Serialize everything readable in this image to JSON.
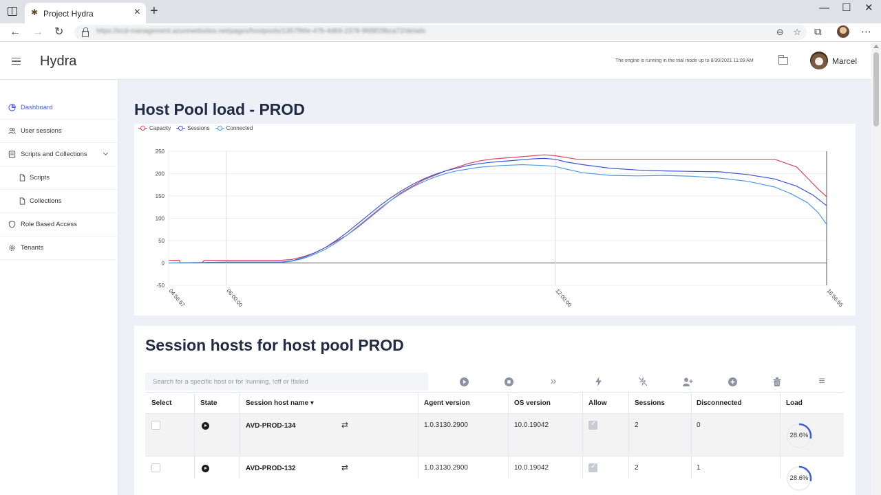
{
  "browser": {
    "tab_title": "Project Hydra",
    "favicon": "hydra-icon",
    "url": "https://ecd-management.azurewebsites.net/pages/hostpools/1357f96e-47b-4d69-2378-9fd9f29bca72/details",
    "nav": {
      "back": "←",
      "forward": "→",
      "reload": "↻"
    },
    "window": {
      "minimize": "—",
      "maximize": "☐",
      "close": "✕"
    }
  },
  "header": {
    "brand": "Hydra",
    "trial_notice": "The engine is running in the trial mode up to 8/30/2021 11:09 AM",
    "user_name": "Marcel"
  },
  "sidebar": {
    "items": [
      {
        "label": "Dashboard",
        "icon": "pie-chart-icon"
      },
      {
        "label": "User sessions",
        "icon": "users-icon"
      },
      {
        "label": "Scripts and Collections",
        "icon": "document-icon"
      },
      {
        "label": "Scripts",
        "icon": "file-icon"
      },
      {
        "label": "Collections",
        "icon": "file-icon"
      },
      {
        "label": "Role Based Access",
        "icon": "shield-icon"
      },
      {
        "label": "Tenants",
        "icon": "gear-icon"
      }
    ]
  },
  "page": {
    "title": "Host Pool load - PROD"
  },
  "chart_data": {
    "type": "line",
    "title": "Host Pool load - PROD",
    "x_ticks": [
      "04:56:57",
      "06:00:00",
      "12:00:00",
      "16:56:55"
    ],
    "x_tick_positions_hours": [
      4.949,
      6.0,
      12.0,
      16.949
    ],
    "xlim_hours": [
      4.949,
      16.949
    ],
    "ylim": [
      -50,
      250
    ],
    "y_ticks": [
      -50,
      0,
      50,
      100,
      150,
      200,
      250
    ],
    "legend": [
      "Capacity",
      "Sessions",
      "Connected"
    ],
    "colors": {
      "Capacity": "#d9445e",
      "Sessions": "#3a52d8",
      "Connected": "#4f9be8"
    },
    "series": [
      {
        "name": "Capacity",
        "x_hours": [
          4.95,
          5.15,
          5.16,
          5.55,
          5.6,
          6.0,
          7.0,
          7.2,
          7.4,
          7.6,
          7.8,
          8.0,
          8.2,
          8.4,
          8.6,
          8.8,
          9.0,
          9.2,
          9.4,
          9.6,
          9.8,
          10.0,
          10.2,
          10.4,
          10.6,
          10.8,
          11.0,
          11.2,
          11.4,
          11.6,
          11.8,
          12.0,
          12.4,
          16.0,
          16.4,
          16.6,
          16.8,
          16.95
        ],
        "values": [
          6,
          6,
          0,
          0,
          6,
          6,
          6,
          8,
          14,
          22,
          34,
          48,
          62,
          80,
          100,
          120,
          140,
          158,
          172,
          186,
          196,
          206,
          214,
          222,
          228,
          232,
          234,
          236,
          238,
          240,
          242,
          240,
          232,
          232,
          215,
          190,
          165,
          148
        ]
      },
      {
        "name": "Sessions",
        "x_hours": [
          4.95,
          6.0,
          7.0,
          7.2,
          7.4,
          7.6,
          7.8,
          8.0,
          8.2,
          8.4,
          8.6,
          8.8,
          9.0,
          9.2,
          9.4,
          9.6,
          9.8,
          10.0,
          10.2,
          10.4,
          10.6,
          10.8,
          11.0,
          11.2,
          11.4,
          11.6,
          11.8,
          12.0,
          12.2,
          12.5,
          13.0,
          13.5,
          14.0,
          14.5,
          15.0,
          15.5,
          16.0,
          16.4,
          16.7,
          16.95
        ],
        "values": [
          0,
          2,
          2,
          5,
          12,
          22,
          34,
          50,
          68,
          88,
          108,
          128,
          146,
          162,
          176,
          188,
          198,
          206,
          212,
          218,
          222,
          225,
          227,
          229,
          231,
          233,
          234,
          232,
          226,
          220,
          212,
          208,
          206,
          205,
          204,
          198,
          188,
          172,
          152,
          128
        ]
      },
      {
        "name": "Connected",
        "x_hours": [
          4.95,
          6.0,
          7.0,
          7.2,
          7.4,
          7.6,
          7.8,
          8.0,
          8.2,
          8.4,
          8.6,
          8.8,
          9.0,
          9.2,
          9.4,
          9.6,
          9.8,
          10.0,
          10.2,
          10.4,
          10.6,
          10.8,
          11.0,
          11.2,
          11.4,
          11.6,
          11.8,
          12.0,
          12.2,
          12.5,
          13.0,
          13.5,
          14.0,
          14.5,
          15.0,
          15.5,
          16.0,
          16.3,
          16.6,
          16.8,
          16.95
        ],
        "values": [
          0,
          1,
          1,
          4,
          10,
          19,
          30,
          45,
          62,
          82,
          102,
          122,
          140,
          156,
          170,
          182,
          192,
          200,
          206,
          210,
          214,
          216,
          218,
          219,
          220,
          219,
          218,
          216,
          210,
          202,
          196,
          195,
          196,
          194,
          190,
          183,
          170,
          155,
          135,
          112,
          86
        ]
      }
    ],
    "grid": true,
    "legend_position": "top-left"
  },
  "hosts": {
    "title": "Session hosts for host pool PROD",
    "search_placeholder": "Search for a specific host or for !running, !off or !failed",
    "toolbar": [
      {
        "icon": "start-icon",
        "glyph": "▶"
      },
      {
        "icon": "stop-icon",
        "glyph": "■"
      },
      {
        "icon": "fast-forward-icon",
        "glyph": "»"
      },
      {
        "icon": "lightning-icon",
        "glyph": "ϟ"
      },
      {
        "icon": "lightning-off-icon",
        "glyph": "✗"
      },
      {
        "icon": "add-user-icon",
        "glyph": "👤"
      },
      {
        "icon": "add-host-icon",
        "glyph": "+"
      },
      {
        "icon": "delete-icon",
        "glyph": "🗑"
      },
      {
        "icon": "menu-icon",
        "glyph": "≡"
      }
    ],
    "columns": [
      "Select",
      "State",
      "Session host name ▾",
      "Agent version",
      "OS version",
      "Allow",
      "Sessions",
      "Disconnected",
      "Load"
    ],
    "rows": [
      {
        "name": "AVD-PROD-134",
        "agent": "1.0.3130.2900",
        "os": "10.0.19042",
        "allow": true,
        "sessions": "2",
        "disconnected": "0",
        "load": "28.6%",
        "load_fraction": 0.286
      },
      {
        "name": "AVD-PROD-132",
        "agent": "1.0.3130.2900",
        "os": "10.0.19042",
        "allow": true,
        "sessions": "2",
        "disconnected": "1",
        "load": "28.6%",
        "load_fraction": 0.286
      }
    ]
  }
}
